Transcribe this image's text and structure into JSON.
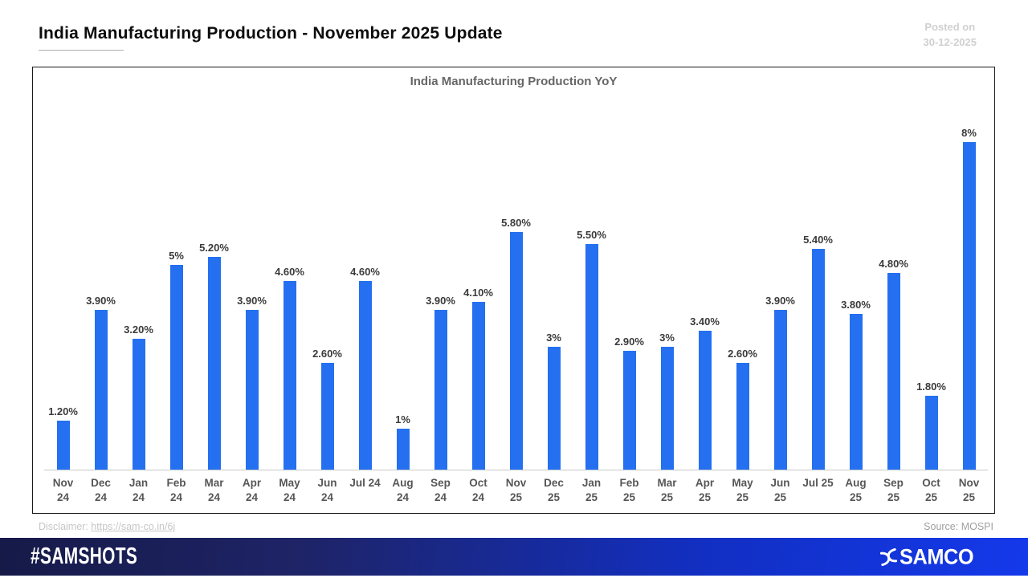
{
  "page": {
    "title": "India Manufacturing Production - November 2025 Update",
    "posted_on_label": "Posted on",
    "posted_date": "30-12-2025",
    "disclaimer_label": "Disclaimer:",
    "disclaimer_url": "https://sam-co.in/6j",
    "source": "Source: MOSPI"
  },
  "footer": {
    "hashtag": "#SAMSHOTS",
    "brand": "SAMCO",
    "brand_logo_icon": "samco-pinwheel-icon",
    "gradient_left": "#161a48",
    "gradient_right": "#1439ea"
  },
  "chart_data": {
    "type": "bar",
    "title": "India Manufacturing Production YoY",
    "categories": [
      "Nov 24",
      "Dec 24",
      "Jan 24",
      "Feb 24",
      "Mar 24",
      "Apr 24",
      "May 24",
      "Jun 24",
      "Jul 24",
      "Aug 24",
      "Sep 24",
      "Oct 24",
      "Nov 25",
      "Dec 25",
      "Jan 25",
      "Feb 25",
      "Mar 25",
      "Apr 25",
      "May 25",
      "Jun 25",
      "Jul 25",
      "Aug 25",
      "Sep 25",
      "Oct 25",
      "Nov 25"
    ],
    "values": [
      1.2,
      3.9,
      3.2,
      5,
      5.2,
      3.9,
      4.6,
      2.6,
      4.6,
      1,
      3.9,
      4.1,
      5.8,
      3,
      5.5,
      2.9,
      3,
      3.4,
      2.6,
      3.9,
      5.4,
      3.8,
      4.8,
      1.8,
      8
    ],
    "labels": [
      "1.20%",
      "3.90%",
      "3.20%",
      "5%",
      "5.20%",
      "3.90%",
      "4.60%",
      "2.60%",
      "4.60%",
      "1%",
      "3.90%",
      "4.10%",
      "5.80%",
      "3%",
      "5.50%",
      "2.90%",
      "3%",
      "3.40%",
      "2.60%",
      "3.90%",
      "5.40%",
      "3.80%",
      "4.80%",
      "1.80%",
      "8%"
    ],
    "single_line_categories": [
      "Jul 24",
      "Jul 25"
    ],
    "bar_color": "#2470f0",
    "value_label_color": "#3b3b3b",
    "xlabel": "",
    "ylabel": "",
    "y_axis_visible": false,
    "grid": false,
    "legend": "none"
  }
}
